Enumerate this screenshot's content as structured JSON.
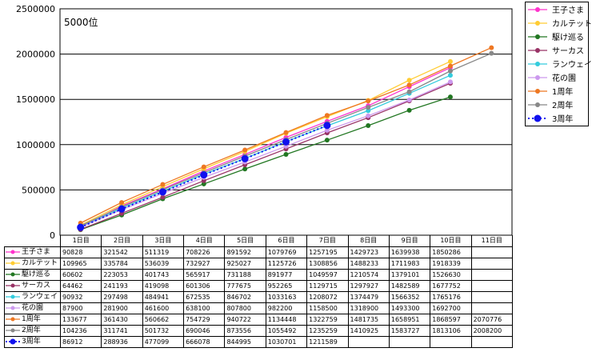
{
  "chart_data": {
    "type": "line",
    "annotation": "5000位",
    "categories": [
      "1日目",
      "2日目",
      "3日目",
      "4日目",
      "5日目",
      "6日目",
      "7日目",
      "8日目",
      "9日目",
      "10日目",
      "11日目"
    ],
    "ylim": [
      0,
      2500000
    ],
    "yticks": [
      "0",
      "500000",
      "1000000",
      "1500000",
      "2000000",
      "2500000"
    ],
    "grid": true,
    "legend_position": "right",
    "series": [
      {
        "name": "王子さま",
        "color": "#ff33cc",
        "style": "solid",
        "values": [
          90828,
          321542,
          511319,
          708226,
          891592,
          1079769,
          1257195,
          1429723,
          1639938,
          1850286,
          null
        ]
      },
      {
        "name": "カルテット",
        "color": "#ffcc33",
        "style": "solid",
        "values": [
          109965,
          335784,
          536039,
          732927,
          925027,
          1125726,
          1308856,
          1488233,
          1711983,
          1918339,
          null
        ]
      },
      {
        "name": "駆け巡る",
        "color": "#227722",
        "style": "solid",
        "values": [
          60602,
          223053,
          401743,
          565917,
          731188,
          891977,
          1049597,
          1210574,
          1379101,
          1526630,
          null
        ]
      },
      {
        "name": "サーカス",
        "color": "#993366",
        "style": "solid",
        "values": [
          64462,
          241193,
          419098,
          601306,
          777675,
          952265,
          1129715,
          1297927,
          1482589,
          1677752,
          null
        ]
      },
      {
        "name": "ランウェイ",
        "color": "#33ccdd",
        "style": "solid",
        "values": [
          90932,
          297498,
          484941,
          672535,
          846702,
          1033163,
          1208072,
          1374479,
          1566352,
          1765176,
          null
        ]
      },
      {
        "name": "花の園",
        "color": "#cc99ee",
        "style": "solid",
        "values": [
          87900,
          281900,
          461600,
          638100,
          807800,
          982200,
          1158500,
          1318900,
          1493300,
          1692700,
          null
        ]
      },
      {
        "name": "1周年",
        "color": "#ee7722",
        "style": "solid",
        "values": [
          133677,
          361430,
          560662,
          754729,
          940722,
          1134448,
          1322759,
          1481735,
          1658951,
          1868597,
          2070776
        ]
      },
      {
        "name": "2周年",
        "color": "#888888",
        "style": "solid",
        "values": [
          104236,
          311741,
          501732,
          690046,
          873556,
          1055492,
          1235259,
          1410925,
          1583727,
          1813106,
          2008200
        ]
      },
      {
        "name": "3周年",
        "color": "#1111ee",
        "style": "dotted",
        "values": [
          86912,
          288936,
          477099,
          666078,
          844995,
          1030701,
          1211589,
          null,
          null,
          null,
          null
        ]
      }
    ]
  }
}
